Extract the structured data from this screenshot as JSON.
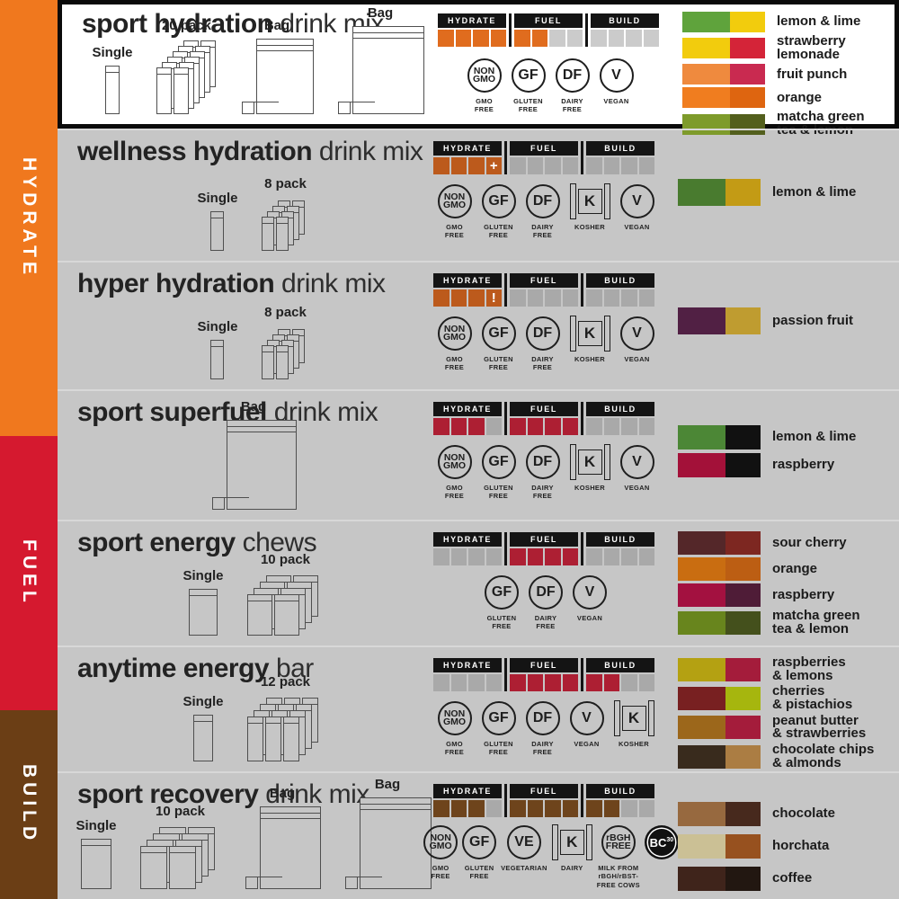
{
  "sidebar": {
    "sections": [
      {
        "label": "HYDRATE",
        "color": "#F0781E"
      },
      {
        "label": "FUEL",
        "color": "#D5192F"
      },
      {
        "label": "BUILD",
        "color": "#6B3E15"
      }
    ]
  },
  "meter_headers": [
    "HYDRATE",
    "FUEL",
    "BUILD"
  ],
  "products": [
    {
      "name_bold": "sport hydration",
      "name_suffix": "drink mix",
      "packages": [
        {
          "label": "Single"
        },
        {
          "label": "20 pack"
        },
        {
          "label": "Bag"
        },
        {
          "label": "Bag"
        }
      ],
      "meter": {
        "color": "#E06C1E",
        "cells": [
          [
            1,
            1,
            1,
            1
          ],
          [
            1,
            1,
            0,
            0
          ],
          [
            0,
            0,
            0,
            0
          ]
        ]
      },
      "badges": [
        {
          "sym": "NON\nGMO",
          "cap": "GMO\nFREE"
        },
        {
          "sym": "GF",
          "cap": "GLUTEN\nFREE"
        },
        {
          "sym": "DF",
          "cap": "DAIRY\nFREE"
        },
        {
          "sym": "V",
          "cap": "VEGAN"
        }
      ],
      "flavors": [
        {
          "left": "#5FA33C",
          "right": "#F2CC0D",
          "label": "lemon & lime"
        },
        {
          "left": "#F2CC0D",
          "right": "#D42438",
          "label": "strawberry\nlemonade"
        },
        {
          "left": "#EF8A3E",
          "right": "#C92A50",
          "label": "fruit punch"
        },
        {
          "left": "#F07D1F",
          "right": "#DE6510",
          "label": "orange"
        },
        {
          "left": "#7E9B2B",
          "right": "#535F1D",
          "label": "matcha green\ntea & lemon"
        }
      ]
    },
    {
      "name_bold": "wellness hydration",
      "name_suffix": "drink mix",
      "packages": [
        {
          "label": "Single"
        },
        {
          "label": "8 pack"
        }
      ],
      "meter": {
        "color": "#BC5A1C",
        "cells": [
          [
            1,
            1,
            1,
            "+"
          ],
          [
            0,
            0,
            0,
            0
          ],
          [
            0,
            0,
            0,
            0
          ]
        ]
      },
      "badges": [
        {
          "sym": "NON\nGMO",
          "cap": "GMO\nFREE"
        },
        {
          "sym": "GF",
          "cap": "GLUTEN\nFREE"
        },
        {
          "sym": "DF",
          "cap": "DAIRY\nFREE"
        },
        {
          "sym": "K",
          "cap": "KOSHER"
        },
        {
          "sym": "V",
          "cap": "VEGAN"
        }
      ],
      "flavors": [
        {
          "left": "#497B2F",
          "right": "#C39B15",
          "label": "lemon & lime"
        }
      ]
    },
    {
      "name_bold": "hyper hydration",
      "name_suffix": "drink mix",
      "packages": [
        {
          "label": "Single"
        },
        {
          "label": "8 pack"
        }
      ],
      "meter": {
        "color": "#BC5A1C",
        "cells": [
          [
            1,
            1,
            1,
            "!"
          ],
          [
            0,
            0,
            0,
            0
          ],
          [
            0,
            0,
            0,
            0
          ]
        ]
      },
      "badges": [
        {
          "sym": "NON\nGMO",
          "cap": "GMO\nFREE"
        },
        {
          "sym": "GF",
          "cap": "GLUTEN\nFREE"
        },
        {
          "sym": "DF",
          "cap": "DAIRY\nFREE"
        },
        {
          "sym": "K",
          "cap": "KOSHER"
        },
        {
          "sym": "V",
          "cap": "VEGAN"
        }
      ],
      "flavors": [
        {
          "left": "#512044",
          "right": "#BF9C30",
          "label": "passion fruit"
        }
      ]
    },
    {
      "name_bold": "sport superfuel",
      "name_suffix": "drink mix",
      "packages": [
        {
          "label": "Bag"
        }
      ],
      "meter": {
        "color": "#AD1F33",
        "cells": [
          [
            1,
            1,
            1,
            0
          ],
          [
            1,
            1,
            1,
            1
          ],
          [
            0,
            0,
            0,
            0
          ]
        ]
      },
      "badges": [
        {
          "sym": "NON\nGMO",
          "cap": "GMO\nFREE"
        },
        {
          "sym": "GF",
          "cap": "GLUTEN\nFREE"
        },
        {
          "sym": "DF",
          "cap": "DAIRY\nFREE"
        },
        {
          "sym": "K",
          "cap": "KOSHER"
        },
        {
          "sym": "V",
          "cap": "VEGAN"
        }
      ],
      "flavors": [
        {
          "left": "#4C8736",
          "right": "#111111",
          "label": "lemon & lime"
        },
        {
          "left": "#A31139",
          "right": "#111111",
          "label": "raspberry"
        }
      ]
    },
    {
      "name_bold": "sport energy",
      "name_suffix": "chews",
      "packages": [
        {
          "label": "Single"
        },
        {
          "label": "10 pack"
        }
      ],
      "meter": {
        "color": "#AD1F33",
        "cells": [
          [
            0,
            0,
            0,
            0
          ],
          [
            1,
            1,
            1,
            1
          ],
          [
            0,
            0,
            0,
            0
          ]
        ]
      },
      "badges": [
        {
          "sym": "GF",
          "cap": "GLUTEN\nFREE"
        },
        {
          "sym": "DF",
          "cap": "DAIRY\nFREE"
        },
        {
          "sym": "V",
          "cap": "VEGAN"
        }
      ],
      "flavors": [
        {
          "left": "#542729",
          "right": "#7D2721",
          "label": "sour cherry"
        },
        {
          "left": "#C96D11",
          "right": "#BC5E13",
          "label": "orange"
        },
        {
          "left": "#A31140",
          "right": "#4F1C37",
          "label": "raspberry"
        },
        {
          "left": "#68851D",
          "right": "#44501C",
          "label": "matcha green\ntea & lemon"
        }
      ]
    },
    {
      "name_bold": "anytime energy",
      "name_suffix": "bar",
      "packages": [
        {
          "label": "Single"
        },
        {
          "label": "12 pack"
        }
      ],
      "meter": {
        "color": "#AD1F33",
        "cells": [
          [
            0,
            0,
            0,
            0
          ],
          [
            1,
            1,
            1,
            1
          ],
          [
            1,
            1,
            0,
            0
          ]
        ]
      },
      "badges": [
        {
          "sym": "NON\nGMO",
          "cap": "GMO\nFREE"
        },
        {
          "sym": "GF",
          "cap": "GLUTEN\nFREE"
        },
        {
          "sym": "DF",
          "cap": "DAIRY\nFREE"
        },
        {
          "sym": "V",
          "cap": "VEGAN"
        },
        {
          "sym": "K",
          "cap": "KOSHER"
        }
      ],
      "flavors": [
        {
          "left": "#B4A112",
          "right": "#A41C3B",
          "label": "raspberries\n& lemons"
        },
        {
          "left": "#782021",
          "right": "#A6B60E",
          "label": "cherries\n& pistachios"
        },
        {
          "left": "#9C671B",
          "right": "#A41C3B",
          "label": "peanut butter\n& strawberries"
        },
        {
          "left": "#392B1D",
          "right": "#AB7D43",
          "label": "chocolate chips\n& almonds"
        }
      ]
    },
    {
      "name_bold": "sport recovery",
      "name_suffix": "drink mix",
      "packages": [
        {
          "label": "Single"
        },
        {
          "label": "10 pack"
        },
        {
          "label": "Bag"
        },
        {
          "label": "Bag"
        }
      ],
      "meter": {
        "color": "#6E441C",
        "cells": [
          [
            1,
            1,
            1,
            0
          ],
          [
            1,
            1,
            1,
            1
          ],
          [
            1,
            1,
            0,
            0
          ]
        ]
      },
      "badges": [
        {
          "sym": "NON\nGMO",
          "cap": "GMO\nFREE"
        },
        {
          "sym": "GF",
          "cap": "GLUTEN\nFREE"
        },
        {
          "sym": "VE",
          "cap": "VEGETARIAN"
        },
        {
          "sym": "K",
          "cap": "DAIRY"
        },
        {
          "sym": "rBGH\nFREE",
          "cap": "MILK FROM\nrBGH/rBST-\nFREE COWS"
        },
        {
          "sym": "BC",
          "sym2": "30"
        }
      ],
      "flavors": [
        {
          "left": "#97693F",
          "right": "#47291D",
          "label": "chocolate"
        },
        {
          "left": "#CBC095",
          "right": "#97511F",
          "label": "horchata"
        },
        {
          "left": "#3F241B",
          "right": "#221711",
          "label": "coffee"
        }
      ]
    }
  ]
}
